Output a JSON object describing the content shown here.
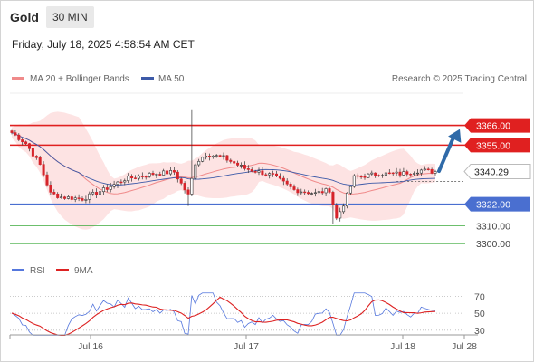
{
  "header": {
    "instrument": "Gold",
    "timeframe": "30 MIN",
    "datetime": "Friday, July 18, 2025 4:58:54 AM CET"
  },
  "legend": {
    "ma20_label": "MA 20 + Bollinger Bands",
    "ma50_label": "MA 50",
    "credit": "Research © 2025 Trading Central",
    "rsi_label": "RSI",
    "rsi_ma_label": "9MA"
  },
  "colors": {
    "up": "#2a2a2a",
    "down": "#d6242b",
    "ma20": "#f08a8a",
    "ma50": "#3d5aa8",
    "band_fill": "#fde3e3",
    "resistance": "#e02020",
    "support": "#4a6fd0",
    "target_line": "#3caa3c",
    "arrow": "#2f6aa8",
    "rsi": "#5577dd",
    "rsi_ma": "#dd2222"
  },
  "chart_data": [
    {
      "type": "candlestick",
      "title": "Gold",
      "timeframe": "30 MIN",
      "x_ticks": [
        "Jul 16",
        "Jul 17",
        "Jul 18",
        "Jul 28"
      ],
      "ylim": [
        3292,
        3384
      ],
      "last_price": 3340.29,
      "levels": [
        {
          "value": 3366.0,
          "label": "3366.00",
          "kind": "resistance"
        },
        {
          "value": 3355.0,
          "label": "3355.00",
          "kind": "resistance"
        },
        {
          "value": 3322.0,
          "label": "3322.00",
          "kind": "support"
        },
        {
          "value": 3310.0,
          "label": "3310.00",
          "kind": "target"
        },
        {
          "value": 3300.0,
          "label": "3300.00",
          "kind": "target"
        }
      ],
      "last_price_label": "3340.29",
      "forecast_arrow": {
        "from_price": 3340.5,
        "to_price": 3364.0
      },
      "series_keyframes": [
        [
          0,
          3362
        ],
        [
          4,
          3356
        ],
        [
          8,
          3344
        ],
        [
          11,
          3328
        ],
        [
          14,
          3326
        ],
        [
          20,
          3325
        ],
        [
          26,
          3330
        ],
        [
          32,
          3336
        ],
        [
          40,
          3339
        ],
        [
          46,
          3340
        ],
        [
          50,
          3327
        ],
        [
          52,
          3345
        ],
        [
          55,
          3350
        ],
        [
          60,
          3348
        ],
        [
          66,
          3342
        ],
        [
          74,
          3338
        ],
        [
          80,
          3330
        ],
        [
          86,
          3328
        ],
        [
          90,
          3330
        ],
        [
          92,
          3314
        ],
        [
          94,
          3322
        ],
        [
          97,
          3337
        ],
        [
          104,
          3339
        ],
        [
          110,
          3339
        ],
        [
          116,
          3341
        ],
        [
          120,
          3340
        ]
      ],
      "spikes": [
        {
          "index": 50,
          "low": 3321
        },
        {
          "index": 51,
          "high": 3375
        },
        {
          "index": 91,
          "low": 3311
        }
      ]
    },
    {
      "type": "line",
      "title": "RSI",
      "series": [
        {
          "name": "RSI"
        },
        {
          "name": "9MA"
        }
      ],
      "y_ticks": [
        70,
        50,
        30
      ],
      "ylim": [
        18,
        78
      ]
    }
  ]
}
